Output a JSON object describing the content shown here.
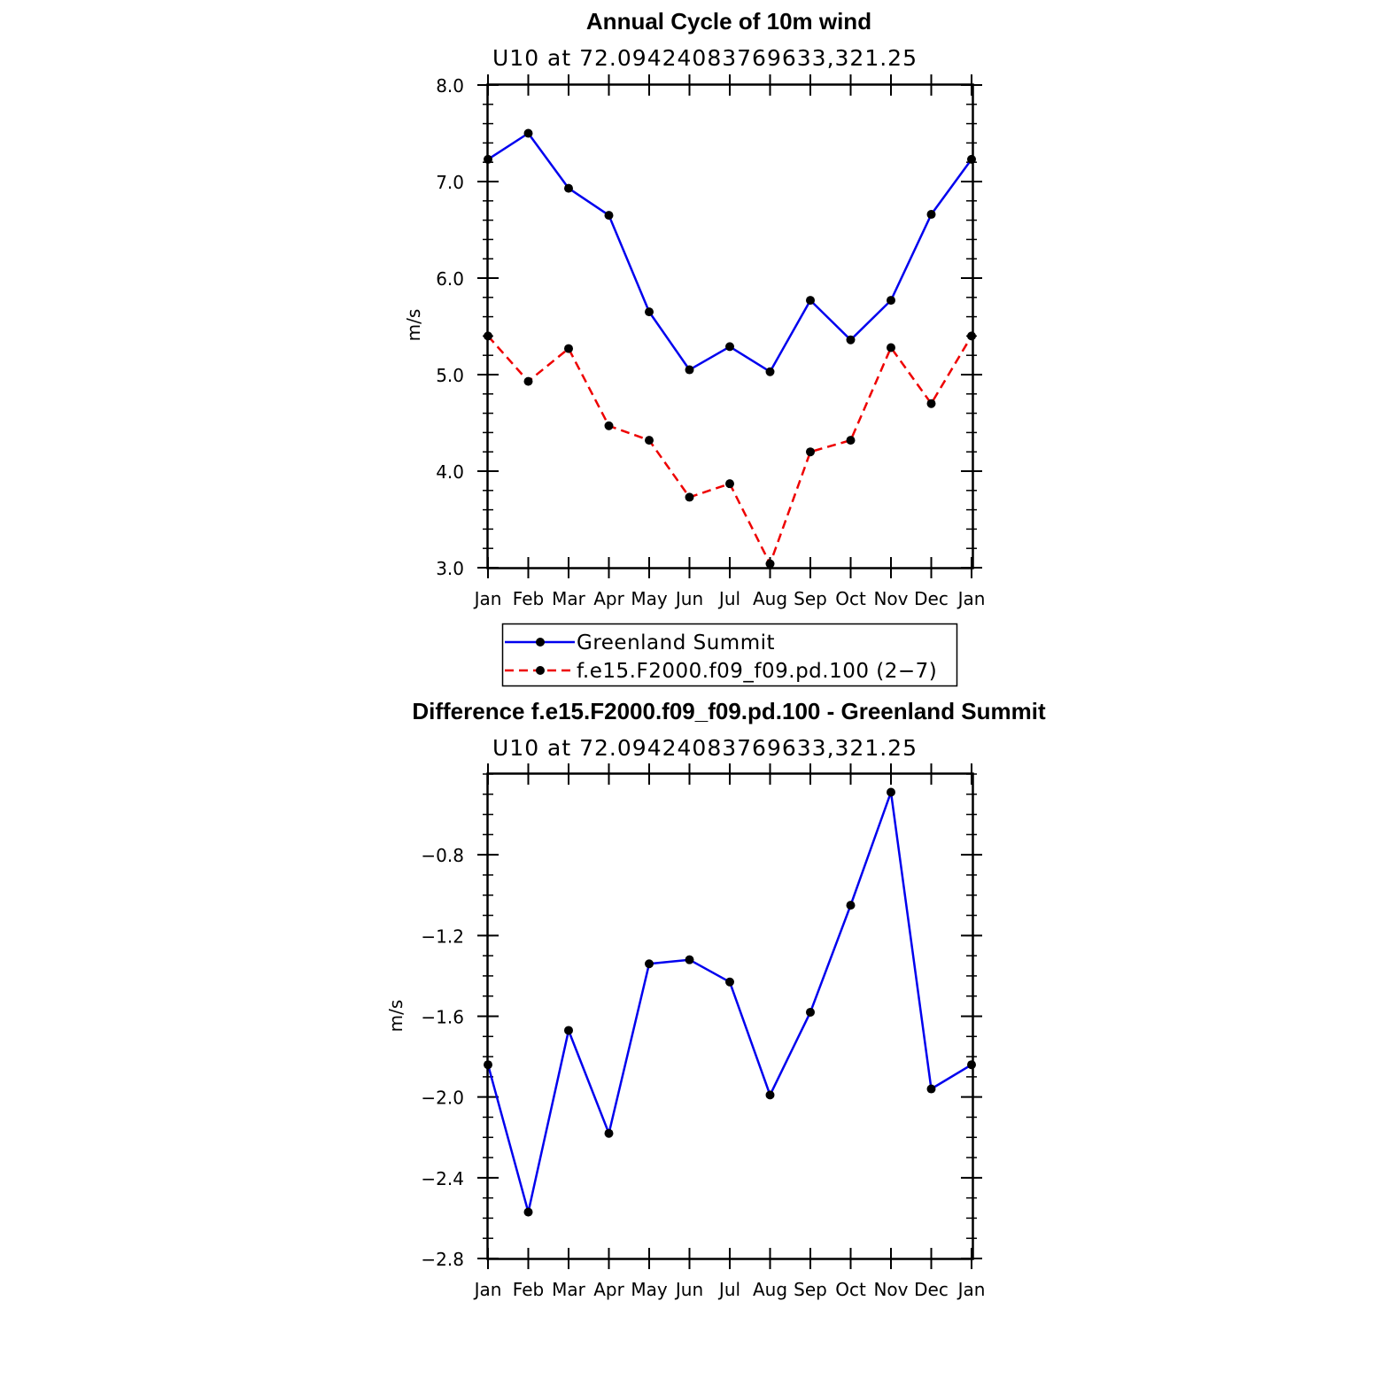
{
  "chart_data": [
    {
      "type": "line",
      "title": "Annual Cycle of 10m wind",
      "subtitle": "U10 at 72.09424083769633,321.25",
      "ylabel": "m/s",
      "categories": [
        "Jan",
        "Feb",
        "Mar",
        "Apr",
        "May",
        "Jun",
        "Jul",
        "Aug",
        "Sep",
        "Oct",
        "Nov",
        "Dec",
        "Jan"
      ],
      "ylim": [
        3.0,
        8.0
      ],
      "yticks": [
        "3.0",
        "4.0",
        "5.0",
        "6.0",
        "7.0",
        "8.0"
      ],
      "legend": {
        "position": "bottom"
      },
      "series": [
        {
          "name": "Greenland Summit",
          "color": "#0000ee",
          "style": "solid",
          "values": [
            7.23,
            7.5,
            6.93,
            6.65,
            5.65,
            5.05,
            5.29,
            5.03,
            5.77,
            5.36,
            5.77,
            6.66,
            7.23
          ]
        },
        {
          "name": "f.e15.F2000.f09_f09.pd.100 (2−7)",
          "color": "#ee0000",
          "style": "dashed",
          "values": [
            5.4,
            4.93,
            5.27,
            4.47,
            4.32,
            3.73,
            3.87,
            3.04,
            4.2,
            4.32,
            5.28,
            4.7,
            5.4
          ]
        }
      ]
    },
    {
      "type": "line",
      "title": "Difference f.e15.F2000.f09_f09.pd.100 - Greenland Summit",
      "subtitle": "U10 at 72.09424083769633,321.25",
      "ylabel": "m/s",
      "categories": [
        "Jan",
        "Feb",
        "Mar",
        "Apr",
        "May",
        "Jun",
        "Jul",
        "Aug",
        "Sep",
        "Oct",
        "Nov",
        "Dec",
        "Jan"
      ],
      "ylim": [
        -2.8,
        -0.4
      ],
      "yticks": [
        "−2.8",
        "−2.4",
        "−2.0",
        "−1.6",
        "−1.2",
        "−0.8"
      ],
      "series": [
        {
          "color": "#0000ee",
          "style": "solid",
          "values": [
            -1.84,
            -2.57,
            -1.67,
            -2.18,
            -1.34,
            -1.32,
            -1.43,
            -1.99,
            -1.58,
            -1.05,
            -0.49,
            -1.96,
            -1.84
          ]
        }
      ]
    }
  ]
}
